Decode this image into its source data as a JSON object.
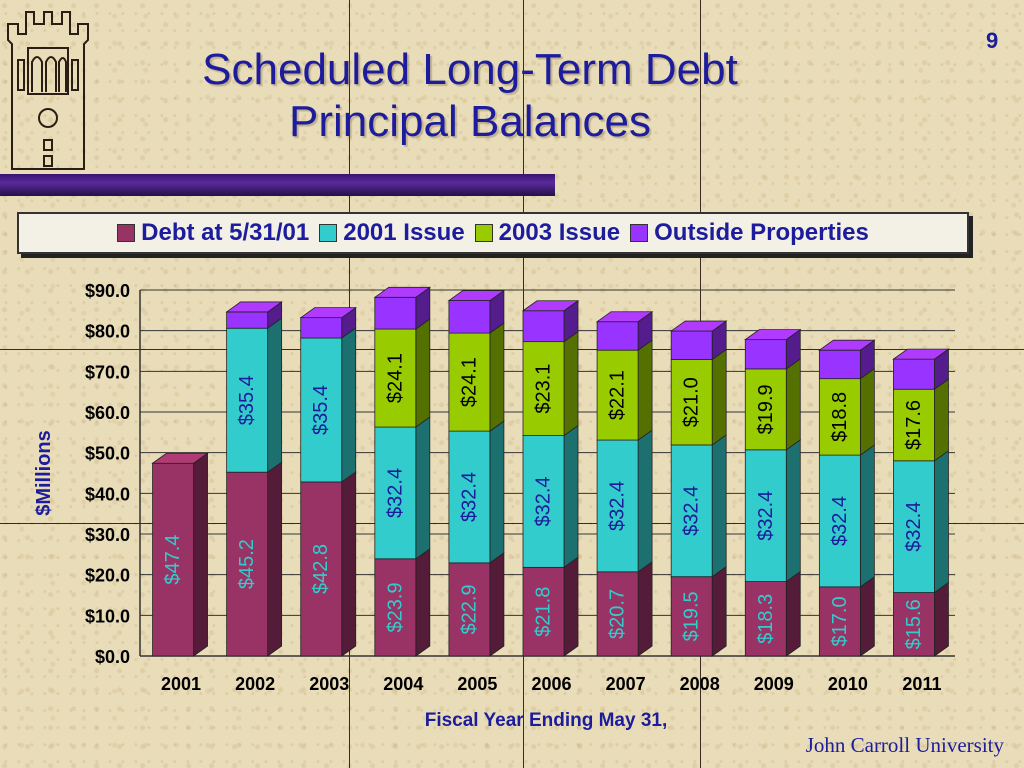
{
  "slide": {
    "page_number": "9",
    "title_line1": "Scheduled Long-Term Debt",
    "title_line2": "Principal Balances",
    "footer": "John Carroll University"
  },
  "chart_data": {
    "type": "bar",
    "stacked": true,
    "categories": [
      "2001",
      "2002",
      "2003",
      "2004",
      "2005",
      "2006",
      "2007",
      "2008",
      "2009",
      "2010",
      "2011"
    ],
    "series": [
      {
        "name": "Debt at 5/31/01",
        "color": "#993366",
        "values": [
          47.4,
          45.2,
          42.8,
          23.9,
          22.9,
          21.8,
          20.7,
          19.5,
          18.3,
          17.0,
          15.6
        ]
      },
      {
        "name": "2001 Issue",
        "color": "#33cccc",
        "values": [
          0,
          35.4,
          35.4,
          32.4,
          32.4,
          32.4,
          32.4,
          32.4,
          32.4,
          32.4,
          32.4
        ]
      },
      {
        "name": "2003 Issue",
        "color": "#99cc00",
        "values": [
          0,
          0,
          0,
          24.1,
          24.1,
          23.1,
          22.1,
          21.0,
          19.9,
          18.8,
          17.6
        ]
      },
      {
        "name": "Outside Properties",
        "color": "#9933ff",
        "values": [
          0,
          4.0,
          5.0,
          7.8,
          8.0,
          7.6,
          7.0,
          7.0,
          7.2,
          7.0,
          7.4
        ]
      }
    ],
    "data_labels": [
      [
        "$47.4",
        "$45.2",
        "$42.8",
        "$23.9",
        "$22.9",
        "$21.8",
        "$20.7",
        "$19.5",
        "$18.3",
        "$17.0",
        "$15.6"
      ],
      [
        "",
        "$35.4",
        "$35.4",
        "$32.4",
        "$32.4",
        "$32.4",
        "$32.4",
        "$32.4",
        "$32.4",
        "$32.4",
        "$32.4"
      ],
      [
        "",
        "",
        "",
        "$24.1",
        "$24.1",
        "$23.1",
        "$22.1",
        "$21.0",
        "$19.9",
        "$18.8",
        "$17.6"
      ],
      [
        "",
        "",
        "",
        "",
        "",
        "",
        "",
        "",
        "",
        "",
        ""
      ]
    ],
    "label_colors": [
      "#33cccc",
      "#1c1c9c",
      "#000000",
      "#000000"
    ],
    "ylabel": "$Millions",
    "xlabel": "Fiscal Year Ending May 31,",
    "ylim": [
      0,
      90
    ],
    "yticks": [
      "$0.0",
      "$10.0",
      "$20.0",
      "$30.0",
      "$40.0",
      "$50.0",
      "$60.0",
      "$70.0",
      "$80.0",
      "$90.0"
    ],
    "legend_position": "top"
  }
}
